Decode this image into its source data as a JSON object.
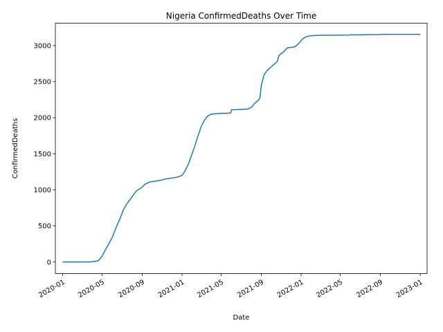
{
  "chart_data": {
    "type": "line",
    "title": "Nigeria  ConfirmedDeaths Over Time",
    "xlabel": "Date",
    "ylabel": "ConfirmedDeaths",
    "x_range": [
      "2019-12-10",
      "2023-01-22"
    ],
    "ylim": [
      -160,
      3310
    ],
    "x_ticks": [
      "2020-01",
      "2020-05",
      "2020-09",
      "2021-01",
      "2021-05",
      "2021-09",
      "2022-01",
      "2022-05",
      "2022-09",
      "2023-01"
    ],
    "y_ticks": [
      0,
      500,
      1000,
      1500,
      2000,
      2500,
      3000
    ],
    "grid": false,
    "legend": "none",
    "series": [
      {
        "color": "#1f77b4",
        "x": [
          "2020-01-01",
          "2020-03-22",
          "2020-04-05",
          "2020-04-20",
          "2020-05-01",
          "2020-05-10",
          "2020-05-20",
          "2020-06-01",
          "2020-06-15",
          "2020-06-25",
          "2020-07-05",
          "2020-07-15",
          "2020-07-25",
          "2020-08-05",
          "2020-08-15",
          "2020-08-30",
          "2020-09-10",
          "2020-09-25",
          "2020-10-10",
          "2020-10-25",
          "2020-11-10",
          "2020-11-25",
          "2020-12-10",
          "2020-12-20",
          "2021-01-01",
          "2021-01-10",
          "2021-01-20",
          "2021-02-01",
          "2021-02-10",
          "2021-02-20",
          "2021-03-01",
          "2021-03-10",
          "2021-03-20",
          "2021-04-01",
          "2021-04-15",
          "2021-05-01",
          "2021-05-15",
          "2021-05-30",
          "2021-06-02",
          "2021-06-15",
          "2021-07-01",
          "2021-07-20",
          "2021-08-01",
          "2021-08-10",
          "2021-08-20",
          "2021-08-25",
          "2021-08-28",
          "2021-09-01",
          "2021-09-05",
          "2021-09-10",
          "2021-09-20",
          "2021-09-30",
          "2021-10-10",
          "2021-10-20",
          "2021-10-25",
          "2021-11-01",
          "2021-11-05",
          "2021-11-10",
          "2021-11-20",
          "2021-12-01",
          "2021-12-10",
          "2021-12-15",
          "2021-12-25",
          "2022-01-05",
          "2022-01-15",
          "2022-01-30",
          "2022-02-15",
          "2022-03-01",
          "2022-05-30",
          "2022-06-01",
          "2022-06-05",
          "2022-07-01",
          "2022-08-01",
          "2022-09-01",
          "2022-09-05",
          "2023-01-01"
        ],
        "y": [
          0,
          0,
          5,
          20,
          80,
          160,
          240,
          340,
          500,
          600,
          720,
          800,
          860,
          930,
          990,
          1030,
          1080,
          1110,
          1120,
          1130,
          1150,
          1160,
          1170,
          1180,
          1200,
          1260,
          1350,
          1500,
          1620,
          1760,
          1880,
          1960,
          2020,
          2050,
          2055,
          2060,
          2062,
          2065,
          2110,
          2112,
          2115,
          2120,
          2140,
          2190,
          2230,
          2250,
          2280,
          2450,
          2520,
          2600,
          2660,
          2700,
          2740,
          2780,
          2860,
          2890,
          2900,
          2920,
          2970,
          2975,
          2980,
          2990,
          3030,
          3090,
          3120,
          3135,
          3140,
          3142,
          3145,
          3150,
          3148,
          3148,
          3152,
          3153,
          3155,
          3155
        ]
      }
    ]
  }
}
